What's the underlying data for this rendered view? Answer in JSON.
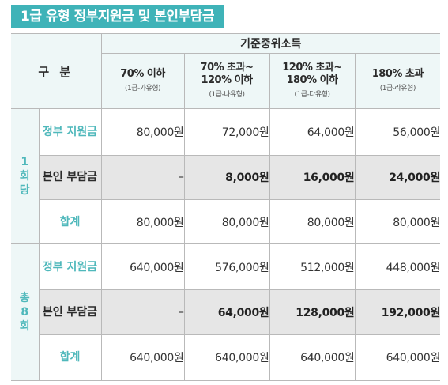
{
  "title": "1급 유형 정부지원금 및 본인부담금",
  "header": {
    "category": "구 분",
    "income_group": "기준중위소득",
    "tiers": [
      {
        "label": "70% 이하",
        "sub": "(1급-가유형)"
      },
      {
        "label": "70% 초과~ 120% 이하",
        "sub": "(1급-나유형)"
      },
      {
        "label": "120% 초과~ 180% 이하",
        "sub": "(1급-다유형)"
      },
      {
        "label": "180% 초과",
        "sub": "(1급-라유형)"
      }
    ]
  },
  "groups": [
    {
      "label": "1회당",
      "chars": [
        "1",
        "회",
        "당"
      ],
      "rows": [
        {
          "label": "정부 지원금",
          "values": [
            "80,000원",
            "72,000원",
            "64,000원",
            "56,000원"
          ]
        },
        {
          "label": "본인 부담금",
          "values": [
            "–",
            "8,000원",
            "16,000원",
            "24,000원"
          ]
        },
        {
          "label": "합계",
          "values": [
            "80,000원",
            "80,000원",
            "80,000원",
            "80,000원"
          ]
        }
      ]
    },
    {
      "label": "총8회",
      "chars": [
        "총",
        "8",
        "회"
      ],
      "rows": [
        {
          "label": "정부 지원금",
          "values": [
            "640,000원",
            "576,000원",
            "512,000원",
            "448,000원"
          ]
        },
        {
          "label": "본인 부담금",
          "values": [
            "–",
            "64,000원",
            "128,000원",
            "192,000원"
          ]
        },
        {
          "label": "합계",
          "values": [
            "640,000원",
            "640,000원",
            "640,000원",
            "640,000원"
          ]
        }
      ]
    }
  ],
  "colors": {
    "accent": "#3fb3b8",
    "label_teal": "#4fb8bb",
    "header_bg": "#eef7f7",
    "self_row_bg": "#e6e6e6"
  }
}
